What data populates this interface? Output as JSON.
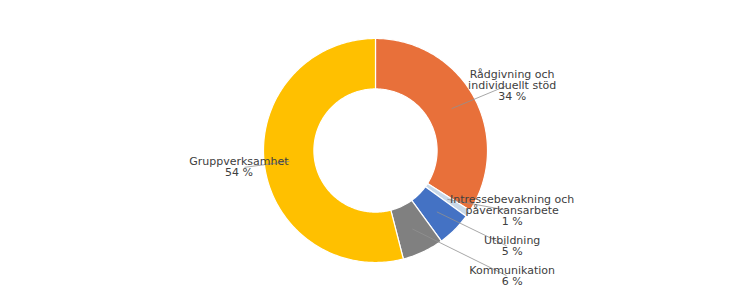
{
  "chart_data": {
    "type": "donut",
    "categories": [
      "Rådgivning och\nindividuellt stöd",
      "Intressebevakning och\npåverkansarbete",
      "Utbildning",
      "Kommunikation",
      "Gruppverksamhet"
    ],
    "values": [
      34,
      1,
      5,
      6,
      54
    ],
    "value_labels": [
      "34 %",
      "1 %",
      "5 %",
      "6 %",
      "54 %"
    ],
    "data_labels": true,
    "colors": [
      "#E8703A",
      "#C8D8E8",
      "#4472C4",
      "#808080",
      "#FFC000"
    ]
  }
}
